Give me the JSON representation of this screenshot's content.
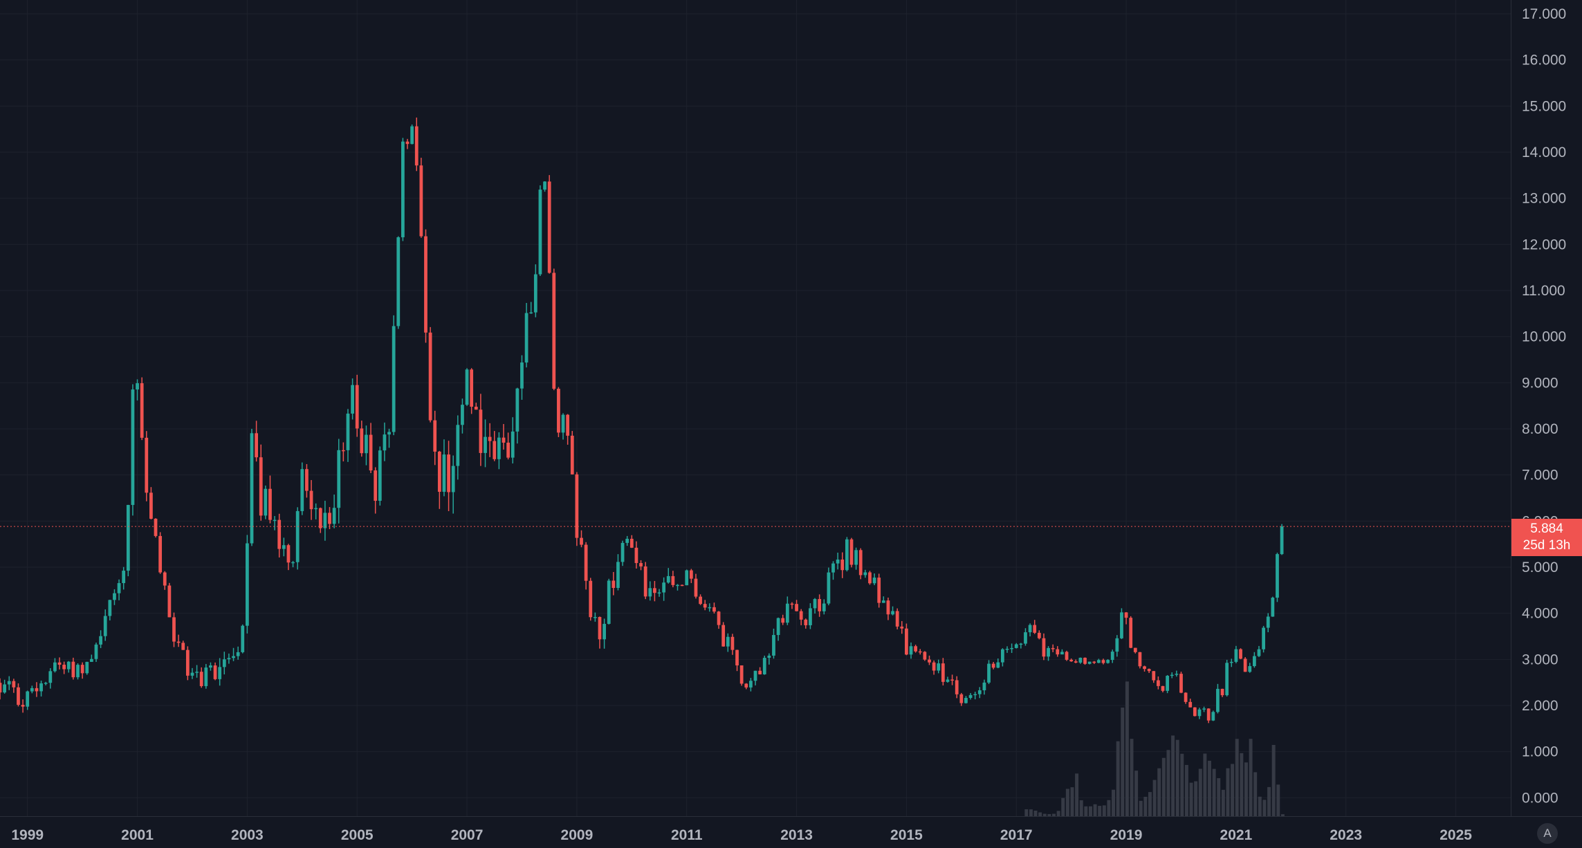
{
  "colors": {
    "background": "#131722",
    "up": "#26a69a",
    "down": "#ef5350",
    "volume": "#363a45",
    "grid": "#1e222d",
    "text": "#b2b5be",
    "price_line": "#ef5350"
  },
  "price_badge": {
    "price": "5.884",
    "countdown": "25d 13h"
  },
  "auto_scale_label": "A",
  "chart_data": {
    "type": "candlestick",
    "interval": "monthly",
    "x_axis": {
      "labels": [
        "1999",
        "2001",
        "2003",
        "2005",
        "2007",
        "2009",
        "2011",
        "2013",
        "2015",
        "2017",
        "2019",
        "2021",
        "2023",
        "2025"
      ],
      "start": 1998.5,
      "end": 2026.0
    },
    "y_axis": {
      "labels": [
        "17.000",
        "16.000",
        "15.000",
        "14.000",
        "13.000",
        "12.000",
        "11.000",
        "10.000",
        "9.000",
        "8.000",
        "7.000",
        "6.000",
        "5.000",
        "4.000",
        "3.000",
        "2.000",
        "1.000",
        "0.000"
      ],
      "min": -0.4,
      "max": 17.3,
      "position": "right"
    },
    "last_price": 5.884,
    "grid": true,
    "anchors": [
      [
        1998.5,
        2.1,
        2.7
      ],
      [
        1999.0,
        1.8,
        2.4
      ],
      [
        1999.5,
        2.7,
        3.2
      ],
      [
        2000.0,
        2.5,
        3.0
      ],
      [
        2000.5,
        3.8,
        4.5
      ],
      [
        2000.8,
        5.0,
        5.6
      ],
      [
        2000.95,
        9.0,
        10.3
      ],
      [
        2001.1,
        6.5,
        7.5
      ],
      [
        2001.4,
        4.8,
        5.2
      ],
      [
        2001.7,
        3.0,
        3.6
      ],
      [
        2002.0,
        2.3,
        2.9
      ],
      [
        2002.5,
        2.4,
        3.2
      ],
      [
        2002.9,
        3.3,
        4.1
      ],
      [
        2003.1,
        7.5,
        8.6
      ],
      [
        2003.3,
        5.5,
        6.8
      ],
      [
        2003.8,
        4.8,
        5.6
      ],
      [
        2004.0,
        6.5,
        7.5
      ],
      [
        2004.3,
        5.5,
        6.5
      ],
      [
        2004.8,
        6.5,
        8.0
      ],
      [
        2004.9,
        8.5,
        9.4
      ],
      [
        2005.3,
        6.2,
        7.4
      ],
      [
        2005.6,
        7.0,
        8.4
      ],
      [
        2005.75,
        12.0,
        13.0
      ],
      [
        2005.85,
        14.4,
        15.0
      ],
      [
        2006.1,
        13.4,
        14.4
      ],
      [
        2006.3,
        7.5,
        9.0
      ],
      [
        2006.5,
        6.0,
        7.5
      ],
      [
        2006.8,
        6.5,
        8.5
      ],
      [
        2007.0,
        9.0,
        9.4
      ],
      [
        2007.3,
        7.0,
        8.6
      ],
      [
        2007.5,
        6.5,
        7.8
      ],
      [
        2007.8,
        7.5,
        8.8
      ],
      [
        2008.0,
        9.0,
        10.0
      ],
      [
        2008.2,
        10.5,
        11.8
      ],
      [
        2008.4,
        13.8,
        14.0
      ],
      [
        2008.6,
        8.0,
        9.5
      ],
      [
        2008.9,
        6.5,
        7.5
      ],
      [
        2009.1,
        4.5,
        5.5
      ],
      [
        2009.4,
        3.3,
        4.2
      ],
      [
        2009.7,
        4.5,
        5.3
      ],
      [
        2009.85,
        5.6,
        6.1
      ],
      [
        2010.2,
        4.3,
        5.0
      ],
      [
        2010.6,
        4.0,
        4.8
      ],
      [
        2011.0,
        4.6,
        5.0
      ],
      [
        2011.4,
        3.8,
        4.3
      ],
      [
        2011.8,
        2.8,
        3.4
      ],
      [
        2012.1,
        2.2,
        2.6
      ],
      [
        2012.5,
        3.0,
        3.6
      ],
      [
        2012.9,
        3.8,
        4.5
      ],
      [
        2013.2,
        3.6,
        4.1
      ],
      [
        2013.6,
        4.3,
        5.0
      ],
      [
        2013.9,
        5.1,
        5.8
      ],
      [
        2014.3,
        4.5,
        5.0
      ],
      [
        2014.6,
        4.0,
        4.5
      ],
      [
        2014.9,
        3.2,
        3.7
      ],
      [
        2015.3,
        2.8,
        3.1
      ],
      [
        2015.7,
        2.4,
        2.9
      ],
      [
        2016.1,
        1.9,
        2.3
      ],
      [
        2016.5,
        2.6,
        3.0
      ],
      [
        2016.9,
        3.0,
        3.4
      ],
      [
        2017.2,
        3.5,
        4.0
      ],
      [
        2017.6,
        2.9,
        3.3
      ],
      [
        2017.9,
        3.0,
        3.2
      ],
      [
        2018.3,
        2.8,
        3.0
      ],
      [
        2018.7,
        2.9,
        3.1
      ],
      [
        2018.95,
        3.8,
        4.5
      ],
      [
        2019.2,
        2.7,
        3.0
      ],
      [
        2019.6,
        2.2,
        2.6
      ],
      [
        2019.9,
        2.5,
        2.8
      ],
      [
        2020.2,
        1.8,
        2.2
      ],
      [
        2020.5,
        1.6,
        1.9
      ],
      [
        2020.8,
        2.3,
        2.9
      ],
      [
        2021.0,
        3.1,
        3.4
      ],
      [
        2021.2,
        2.5,
        2.8
      ],
      [
        2021.45,
        3.2,
        3.6
      ],
      [
        2021.7,
        4.4,
        4.9
      ],
      [
        2021.8,
        5.8,
        6.1
      ],
      [
        2021.88,
        5.884,
        6.0
      ]
    ],
    "volume_anchors": [
      [
        2017.1,
        0.0
      ],
      [
        2017.15,
        0.18
      ],
      [
        2017.5,
        0.05
      ],
      [
        2017.75,
        0.05
      ],
      [
        2017.8,
        0.25
      ],
      [
        2017.95,
        0.6
      ],
      [
        2018.1,
        0.9
      ],
      [
        2018.2,
        0.2
      ],
      [
        2018.6,
        0.25
      ],
      [
        2018.75,
        0.5
      ],
      [
        2018.85,
        1.5
      ],
      [
        2018.92,
        2.5
      ],
      [
        2018.98,
        3.2
      ],
      [
        2019.1,
        1.6
      ],
      [
        2019.25,
        0.3
      ],
      [
        2019.4,
        0.5
      ],
      [
        2019.55,
        1.0
      ],
      [
        2019.75,
        1.6
      ],
      [
        2019.9,
        1.8
      ],
      [
        2020.0,
        1.5
      ],
      [
        2020.15,
        0.8
      ],
      [
        2020.3,
        0.7
      ],
      [
        2020.45,
        1.6
      ],
      [
        2020.6,
        1.1
      ],
      [
        2020.75,
        0.6
      ],
      [
        2020.9,
        1.1
      ],
      [
        2021.0,
        1.5
      ],
      [
        2021.1,
        1.6
      ],
      [
        2021.2,
        1.3
      ],
      [
        2021.3,
        1.6
      ],
      [
        2021.38,
        0.5
      ],
      [
        2021.5,
        0.35
      ],
      [
        2021.6,
        0.55
      ],
      [
        2021.7,
        1.6
      ],
      [
        2021.8,
        0.1
      ],
      [
        2021.88,
        0.0
      ]
    ]
  }
}
